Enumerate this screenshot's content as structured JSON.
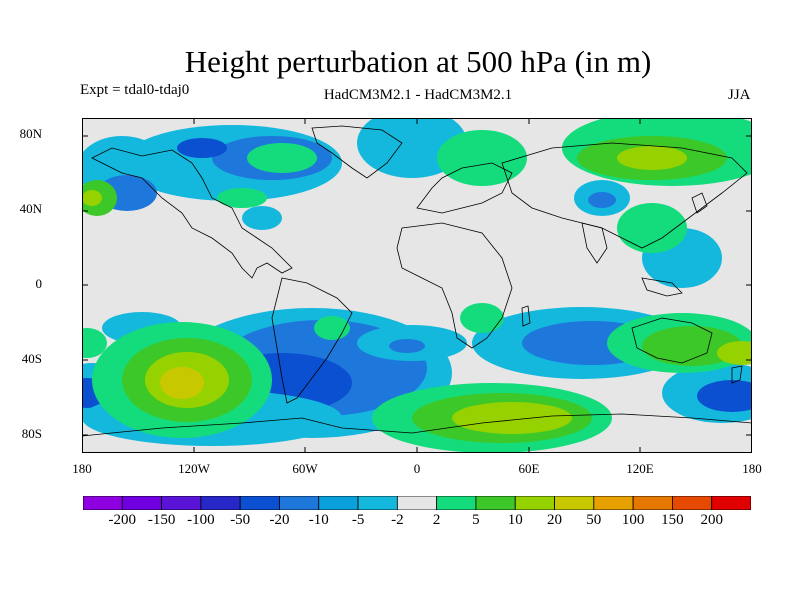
{
  "title": "Height perturbation at 500 hPa (in m)",
  "experiment": "Expt = tdal0-tdaj0",
  "models": "HadCM3M2.1 - HadCM3M2.1",
  "season": "JJA",
  "map": {
    "projection": "cylindrical equidistant",
    "lon_range": [
      -180,
      180
    ],
    "lat_range": [
      -90,
      90
    ],
    "lat_ticks": [
      "80N",
      "40N",
      "0",
      "40S",
      "80S"
    ],
    "lon_ticks": [
      "180",
      "120W",
      "60W",
      "0",
      "60E",
      "120E",
      "180"
    ],
    "background_color": "#e6e6e6",
    "coastline_color": "#000000"
  },
  "colorbar": {
    "labels": [
      "-200",
      "-150",
      "-100",
      "-50",
      "-20",
      "-10",
      "-5",
      "-2",
      "2",
      "5",
      "10",
      "20",
      "50",
      "100",
      "150",
      "200"
    ],
    "colors": [
      "#8e00e0",
      "#7000e0",
      "#5a14d8",
      "#2828c8",
      "#0a50d0",
      "#1e78dc",
      "#0aa0dc",
      "#14b8dc",
      "#e6e6e6",
      "#14dc7c",
      "#3cc828",
      "#96d200",
      "#c8c800",
      "#e6a000",
      "#e67800",
      "#e64a00",
      "#e00000"
    ]
  }
}
